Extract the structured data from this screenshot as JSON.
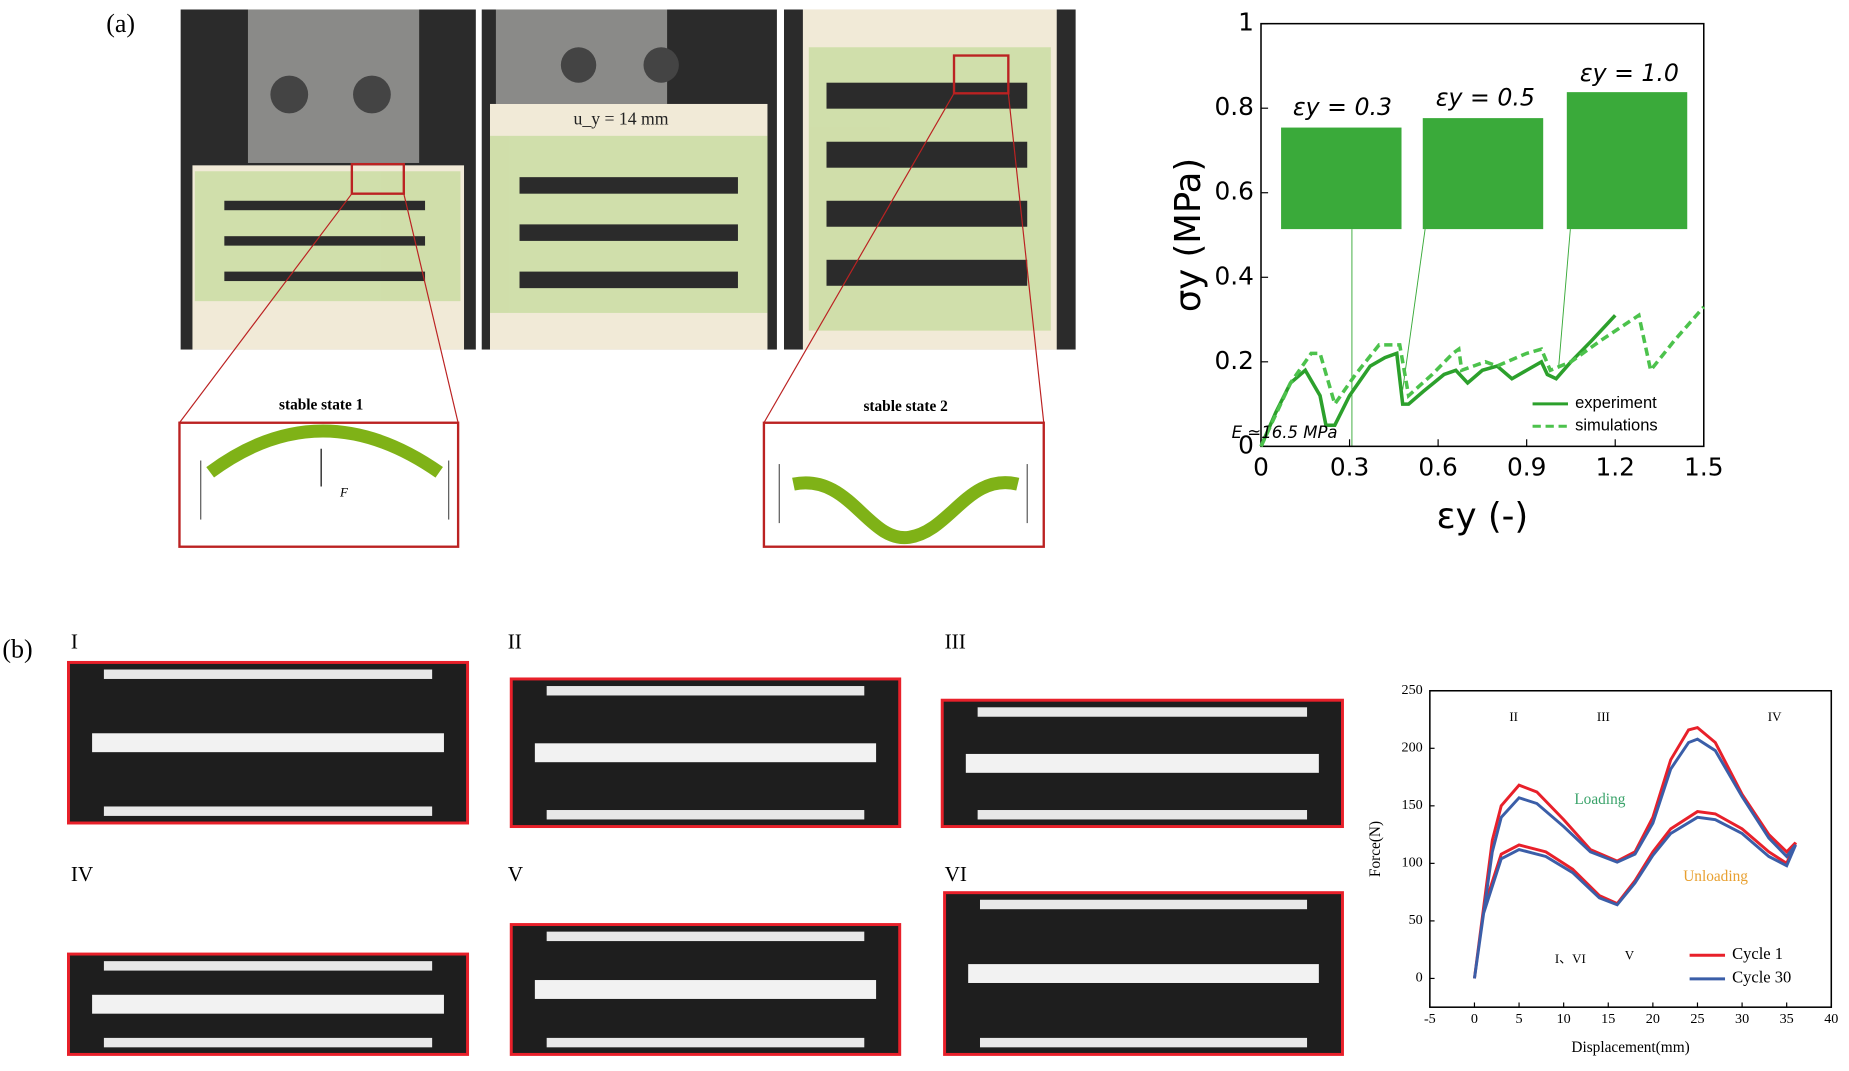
{
  "panels": {
    "a_label": "(a)",
    "b_label": "(b)",
    "photo_label": "u_y = 14 mm",
    "insets": [
      "stable state 1",
      "stable state 2"
    ],
    "force_label": "F",
    "tiles": [
      "I",
      "II",
      "III",
      "IV",
      "V",
      "VI"
    ]
  },
  "chart_data": [
    {
      "type": "line",
      "x_label": "εy (-)",
      "y_label": "σy (MPa)",
      "annotations": [
        "εy = 0.3",
        "εy = 0.5",
        "εy = 1.0",
        "E ≃16.5 MPa"
      ],
      "xlim": [
        0,
        1.5
      ],
      "xticks": [
        0,
        0.3,
        0.6,
        0.9,
        1.2,
        1.5
      ],
      "ylim": [
        0,
        1
      ],
      "yticks": [
        0,
        0.2,
        0.4,
        0.6,
        0.8,
        1
      ],
      "legend": "lower right",
      "series": [
        {
          "name": "experiment",
          "color": "#2ca02c",
          "line_style": "solid",
          "x": [
            0,
            0.05,
            0.1,
            0.15,
            0.2,
            0.22,
            0.25,
            0.3,
            0.37,
            0.42,
            0.46,
            0.48,
            0.5,
            0.55,
            0.62,
            0.66,
            0.7,
            0.75,
            0.8,
            0.85,
            0.9,
            0.95,
            0.97,
            1.0,
            1.05,
            1.12,
            1.2
          ],
          "values": [
            0,
            0.08,
            0.15,
            0.18,
            0.12,
            0.05,
            0.05,
            0.12,
            0.19,
            0.21,
            0.22,
            0.1,
            0.1,
            0.13,
            0.17,
            0.18,
            0.15,
            0.18,
            0.19,
            0.16,
            0.18,
            0.2,
            0.17,
            0.16,
            0.2,
            0.25,
            0.31
          ]
        },
        {
          "name": "simulations",
          "color": "#4cc24c",
          "line_style": "dashed",
          "x": [
            0,
            0.1,
            0.17,
            0.2,
            0.25,
            0.32,
            0.4,
            0.47,
            0.5,
            0.58,
            0.65,
            0.67,
            0.68,
            0.76,
            0.8,
            0.9,
            0.95,
            0.98,
            1.05,
            1.15,
            1.28,
            1.32,
            1.4,
            1.5
          ],
          "values": [
            0,
            0.15,
            0.22,
            0.22,
            0.1,
            0.17,
            0.24,
            0.24,
            0.12,
            0.17,
            0.22,
            0.23,
            0.18,
            0.2,
            0.19,
            0.22,
            0.23,
            0.18,
            0.2,
            0.25,
            0.31,
            0.18,
            0.25,
            0.33
          ]
        }
      ]
    },
    {
      "type": "line",
      "x_label": "Displacement(mm)",
      "y_label": "Force(N)",
      "annotations": [
        "II",
        "III",
        "IV",
        "I、VI",
        "V",
        "Loading",
        "Unloading"
      ],
      "xlim": [
        -5,
        40
      ],
      "xticks": [
        -5,
        0,
        5,
        10,
        15,
        20,
        25,
        30,
        35,
        40
      ],
      "ylim": [
        -25,
        250
      ],
      "yticks": [
        0,
        50,
        100,
        150,
        200,
        250
      ],
      "legend": "lower right",
      "series": [
        {
          "name": "Cycle 1",
          "color": "#e8202a",
          "line_style": "solid",
          "x": [
            0,
            1,
            2,
            3,
            5,
            7,
            10,
            13,
            16,
            18,
            20,
            22,
            24,
            25,
            27,
            30,
            33,
            35,
            36,
            35,
            33,
            30,
            27,
            25,
            22,
            20,
            18,
            16,
            14,
            11,
            8,
            5,
            3,
            1,
            0
          ],
          "values": [
            0,
            60,
            120,
            150,
            168,
            162,
            138,
            112,
            102,
            110,
            140,
            190,
            216,
            218,
            205,
            160,
            125,
            110,
            118,
            100,
            110,
            130,
            143,
            145,
            130,
            110,
            85,
            65,
            72,
            95,
            110,
            116,
            108,
            60,
            0
          ]
        },
        {
          "name": "Cycle 30",
          "color": "#3b5ea8",
          "line_style": "solid",
          "x": [
            0,
            1,
            2,
            3,
            5,
            7,
            10,
            13,
            16,
            18,
            20,
            22,
            24,
            25,
            27,
            30,
            33,
            35,
            36,
            35,
            33,
            30,
            27,
            25,
            22,
            20,
            18,
            16,
            14,
            11,
            8,
            5,
            3,
            1,
            0
          ],
          "values": [
            0,
            55,
            110,
            140,
            157,
            152,
            132,
            110,
            101,
            108,
            135,
            182,
            205,
            208,
            198,
            158,
            122,
            106,
            116,
            98,
            106,
            126,
            138,
            140,
            126,
            107,
            83,
            64,
            70,
            92,
            106,
            112,
            104,
            56,
            0
          ]
        }
      ]
    }
  ]
}
